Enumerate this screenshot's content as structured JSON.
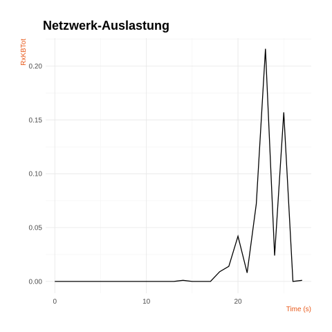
{
  "chart_data": {
    "type": "line",
    "title": "Netzwerk-Auslastung",
    "xlabel": "Time (s)",
    "ylabel": "RxKBTot",
    "xlim": [
      -1,
      28
    ],
    "ylim": [
      -0.011,
      0.226
    ],
    "x_ticks": [
      0,
      10,
      20
    ],
    "y_ticks": [
      0.0,
      0.05,
      0.1,
      0.15,
      0.2
    ],
    "x_tick_labels": [
      "0",
      "10",
      "20"
    ],
    "y_tick_labels": [
      "0.00",
      "0.05",
      "0.10",
      "0.15",
      "0.20"
    ],
    "grid": true,
    "legend": "none",
    "series": [
      {
        "x": [
          0,
          1,
          2,
          3,
          4,
          5,
          6,
          7,
          8,
          9,
          10,
          11,
          12,
          13,
          14,
          15,
          16,
          17,
          18,
          19,
          20,
          21,
          22,
          23,
          24,
          25,
          26,
          27
        ],
        "values": [
          0,
          0,
          0,
          0,
          0,
          0,
          0,
          0,
          0,
          0,
          0,
          0,
          0,
          0,
          0.001,
          0,
          0,
          0,
          0.009,
          0.014,
          0.042,
          0.008,
          0.072,
          0.216,
          0.024,
          0.157,
          0,
          0.001
        ]
      }
    ],
    "colors": {
      "line": "#000000",
      "axis_label": "#e8591a",
      "grid_major": "#e6e6e6",
      "grid_minor": "#f2f2f2",
      "tick_text": "#4d4d4d"
    }
  }
}
